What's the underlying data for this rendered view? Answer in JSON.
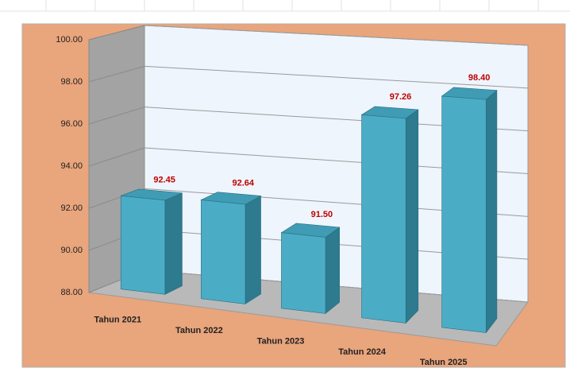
{
  "chart_data": {
    "type": "bar3d",
    "categories": [
      "Tahun 2021",
      "Tahun 2022",
      "Tahun 2023",
      "Tahun 2024",
      "Tahun 2025"
    ],
    "values": [
      92.45,
      92.64,
      91.5,
      97.26,
      98.4
    ],
    "value_labels": [
      "92.45",
      "92.64",
      "91.50",
      "97.26",
      "98.40"
    ],
    "color": "#4bacc6",
    "ylim": [
      88,
      100
    ],
    "yticks": [
      {
        "value": 88,
        "label": "88.00"
      },
      {
        "value": 90,
        "label": "90.00"
      },
      {
        "value": 92,
        "label": "92.00"
      },
      {
        "value": 94,
        "label": "94.00"
      },
      {
        "value": 96,
        "label": "96.00"
      },
      {
        "value": 98,
        "label": "98.00"
      },
      {
        "value": 100,
        "label": "100.00"
      }
    ],
    "grid": true
  }
}
